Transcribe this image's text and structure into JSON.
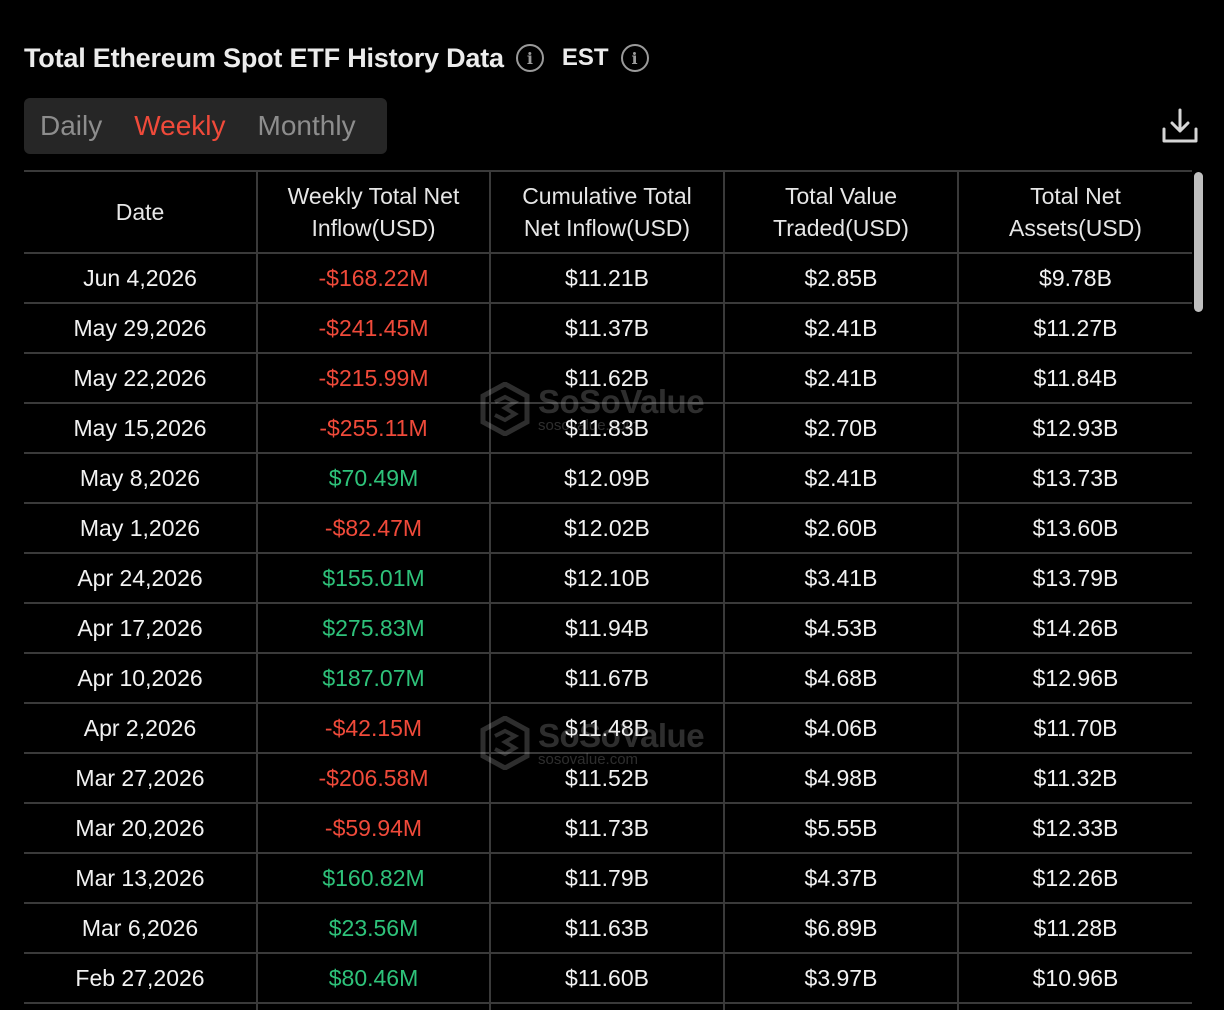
{
  "header": {
    "title": "Total Ethereum Spot ETF History Data",
    "info_glyph": "i",
    "timezone": "EST",
    "tz_info_glyph": "i"
  },
  "tabs": [
    {
      "label": "Daily",
      "active": false
    },
    {
      "label": "Weekly",
      "active": true
    },
    {
      "label": "Monthly",
      "active": false
    }
  ],
  "colors": {
    "accent": "#f04a3a",
    "negative": "#f04a3a",
    "positive": "#2ec27a",
    "background": "#000000"
  },
  "icons": {
    "download": "download-icon",
    "info": "info-icon"
  },
  "watermark": {
    "brand": "SoSoValue",
    "url": "sosovalue.com"
  },
  "table": {
    "columns": [
      "Date",
      "Weekly Total Net Inflow(USD)",
      "Cumulative Total Net Inflow(USD)",
      "Total Value Traded(USD)",
      "Total Net Assets(USD)"
    ],
    "rows": [
      {
        "date": "Jun 4,2026",
        "inflow": "-$168.22M",
        "sign": "neg",
        "cumulative": "$11.21B",
        "traded": "$2.85B",
        "assets": "$9.78B"
      },
      {
        "date": "May 29,2026",
        "inflow": "-$241.45M",
        "sign": "neg",
        "cumulative": "$11.37B",
        "traded": "$2.41B",
        "assets": "$11.27B"
      },
      {
        "date": "May 22,2026",
        "inflow": "-$215.99M",
        "sign": "neg",
        "cumulative": "$11.62B",
        "traded": "$2.41B",
        "assets": "$11.84B"
      },
      {
        "date": "May 15,2026",
        "inflow": "-$255.11M",
        "sign": "neg",
        "cumulative": "$11.83B",
        "traded": "$2.70B",
        "assets": "$12.93B"
      },
      {
        "date": "May 8,2026",
        "inflow": "$70.49M",
        "sign": "pos",
        "cumulative": "$12.09B",
        "traded": "$2.41B",
        "assets": "$13.73B"
      },
      {
        "date": "May 1,2026",
        "inflow": "-$82.47M",
        "sign": "neg",
        "cumulative": "$12.02B",
        "traded": "$2.60B",
        "assets": "$13.60B"
      },
      {
        "date": "Apr 24,2026",
        "inflow": "$155.01M",
        "sign": "pos",
        "cumulative": "$12.10B",
        "traded": "$3.41B",
        "assets": "$13.79B"
      },
      {
        "date": "Apr 17,2026",
        "inflow": "$275.83M",
        "sign": "pos",
        "cumulative": "$11.94B",
        "traded": "$4.53B",
        "assets": "$14.26B"
      },
      {
        "date": "Apr 10,2026",
        "inflow": "$187.07M",
        "sign": "pos",
        "cumulative": "$11.67B",
        "traded": "$4.68B",
        "assets": "$12.96B"
      },
      {
        "date": "Apr 2,2026",
        "inflow": "-$42.15M",
        "sign": "neg",
        "cumulative": "$11.48B",
        "traded": "$4.06B",
        "assets": "$11.70B"
      },
      {
        "date": "Mar 27,2026",
        "inflow": "-$206.58M",
        "sign": "neg",
        "cumulative": "$11.52B",
        "traded": "$4.98B",
        "assets": "$11.32B"
      },
      {
        "date": "Mar 20,2026",
        "inflow": "-$59.94M",
        "sign": "neg",
        "cumulative": "$11.73B",
        "traded": "$5.55B",
        "assets": "$12.33B"
      },
      {
        "date": "Mar 13,2026",
        "inflow": "$160.82M",
        "sign": "pos",
        "cumulative": "$11.79B",
        "traded": "$4.37B",
        "assets": "$12.26B"
      },
      {
        "date": "Mar 6,2026",
        "inflow": "$23.56M",
        "sign": "pos",
        "cumulative": "$11.63B",
        "traded": "$6.89B",
        "assets": "$11.28B"
      },
      {
        "date": "Feb 27,2026",
        "inflow": "$80.46M",
        "sign": "pos",
        "cumulative": "$11.60B",
        "traded": "$3.97B",
        "assets": "$10.96B"
      },
      {
        "date": "",
        "inflow": "",
        "sign": "pos",
        "cumulative": "",
        "traded": "",
        "assets": ""
      }
    ]
  }
}
